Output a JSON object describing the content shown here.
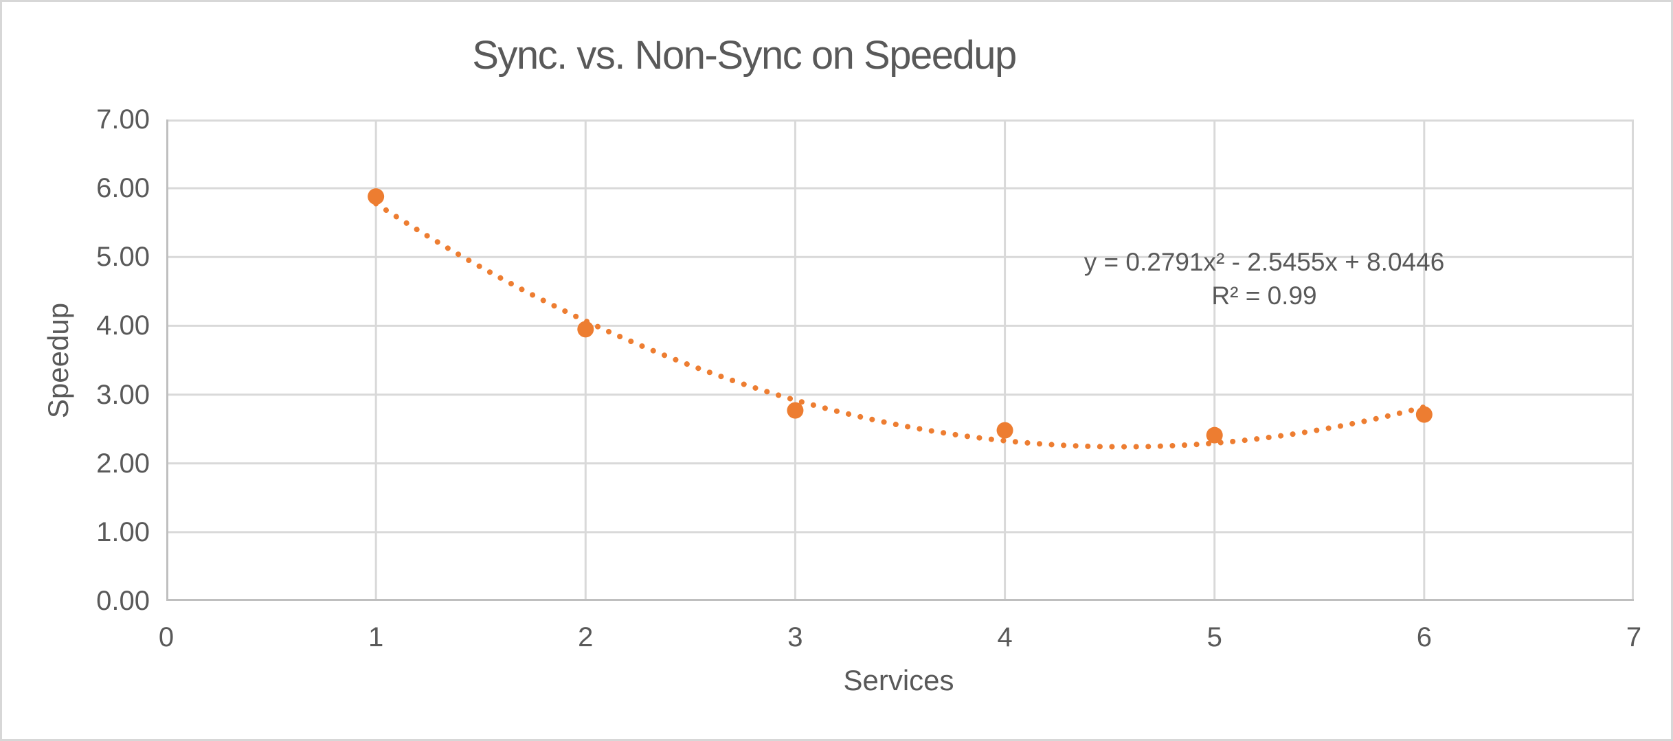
{
  "chart_data": {
    "type": "scatter",
    "title": "Sync. vs. Non-Sync on Speedup",
    "xlabel": "Services",
    "ylabel": "Speedup",
    "x": [
      1,
      2,
      3,
      4,
      5,
      6
    ],
    "y": [
      5.88,
      3.95,
      2.77,
      2.48,
      2.41,
      2.71
    ],
    "xlim": [
      0,
      7
    ],
    "ylim": [
      0,
      7
    ],
    "x_ticks": [
      "0",
      "1",
      "2",
      "3",
      "4",
      "5",
      "6",
      "7"
    ],
    "y_ticks": [
      "0.00",
      "1.00",
      "2.00",
      "3.00",
      "4.00",
      "5.00",
      "6.00",
      "7.00"
    ],
    "grid": true,
    "legend": "none",
    "marker_radius_px": 12,
    "trendline": {
      "type": "polynomial",
      "degree": 2,
      "coefficients": {
        "a": 0.2791,
        "b": -2.5455,
        "c": 8.0446
      },
      "x_range": [
        1,
        6
      ],
      "style": "dotted",
      "r_squared": 0.99
    },
    "annotation": {
      "equation": "y = 0.2791x² - 2.5455x + 8.0446",
      "r2": "R² = 0.99"
    },
    "colors": {
      "series": "#ED7D31",
      "gridline": "#D9D9D9",
      "axis_line": "#BFBFBF",
      "text": "#595959",
      "background": "#FFFFFF",
      "frame_border": "#D7D7D7"
    }
  }
}
